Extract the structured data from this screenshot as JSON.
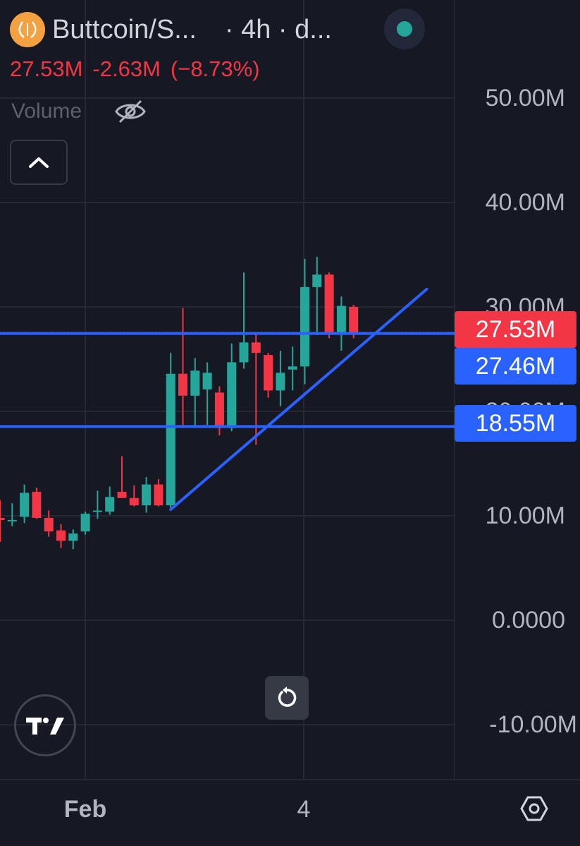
{
  "header": {
    "symbol": "Buttcoin/S...",
    "interval": "· 4h · d...",
    "last_price": "27.53M",
    "change": "-2.63M",
    "change_pct": "(−8.73%)",
    "volume_label": "Volume"
  },
  "colors": {
    "background": "#161823",
    "up": "#26a69a",
    "down": "#f23645",
    "drawing": "#2962ff",
    "grid": "#2a2e39"
  },
  "icons": [
    "coin-logo-icon",
    "eye-off-icon",
    "chevron-up-icon",
    "reset-icon",
    "tradingview-logo-icon",
    "settings-icon"
  ],
  "chart_data": {
    "type": "candlestick",
    "interval": "4h",
    "y_ticks": [
      "50.00M",
      "40.00M",
      "30.00M",
      "20.00M",
      "10.00M",
      "0.0000",
      "-10.00M"
    ],
    "y_tick_values": [
      50000000,
      40000000,
      30000000,
      20000000,
      10000000,
      0,
      -10000000
    ],
    "x_ticks": [
      "Feb",
      "4"
    ],
    "ylim": [
      -15000000,
      50000000
    ],
    "grid": true,
    "candles": [
      {
        "o": 9.8,
        "h": 11.5,
        "l": 7.5,
        "c": 9.6
      },
      {
        "o": 9.5,
        "h": 11.2,
        "l": 9.0,
        "c": 9.6
      },
      {
        "o": 9.9,
        "h": 13.0,
        "l": 9.3,
        "c": 12.2
      },
      {
        "o": 12.3,
        "h": 12.7,
        "l": 9.7,
        "c": 9.8
      },
      {
        "o": 9.8,
        "h": 10.5,
        "l": 8.0,
        "c": 8.5
      },
      {
        "o": 8.6,
        "h": 9.2,
        "l": 6.9,
        "c": 7.6
      },
      {
        "o": 7.6,
        "h": 8.7,
        "l": 6.8,
        "c": 8.3
      },
      {
        "o": 8.5,
        "h": 10.4,
        "l": 8.2,
        "c": 10.2
      },
      {
        "o": 10.4,
        "h": 12.4,
        "l": 9.7,
        "c": 10.5
      },
      {
        "o": 10.4,
        "h": 12.8,
        "l": 10.1,
        "c": 11.8
      },
      {
        "o": 12.3,
        "h": 15.7,
        "l": 11.8,
        "c": 11.7
      },
      {
        "o": 11.7,
        "h": 12.9,
        "l": 10.9,
        "c": 11.0
      },
      {
        "o": 11.0,
        "h": 13.7,
        "l": 10.3,
        "c": 13.0
      },
      {
        "o": 13.0,
        "h": 13.5,
        "l": 10.9,
        "c": 11.0
      },
      {
        "o": 11.0,
        "h": 25.6,
        "l": 10.5,
        "c": 23.6
      },
      {
        "o": 23.6,
        "h": 29.9,
        "l": 18.4,
        "c": 21.5
      },
      {
        "o": 21.5,
        "h": 25.1,
        "l": 18.5,
        "c": 23.9
      },
      {
        "o": 22.1,
        "h": 24.7,
        "l": 18.7,
        "c": 23.7
      },
      {
        "o": 21.8,
        "h": 22.4,
        "l": 17.7,
        "c": 18.4
      },
      {
        "o": 18.4,
        "h": 26.5,
        "l": 18.1,
        "c": 24.7
      },
      {
        "o": 24.7,
        "h": 33.3,
        "l": 24.1,
        "c": 26.6
      },
      {
        "o": 26.6,
        "h": 27.6,
        "l": 16.8,
        "c": 25.6
      },
      {
        "o": 25.4,
        "h": 25.6,
        "l": 21.3,
        "c": 22.0
      },
      {
        "o": 22.0,
        "h": 25.8,
        "l": 20.5,
        "c": 23.7
      },
      {
        "o": 24.0,
        "h": 26.2,
        "l": 22.0,
        "c": 24.3
      },
      {
        "o": 24.3,
        "h": 34.6,
        "l": 22.6,
        "c": 31.9
      },
      {
        "o": 31.9,
        "h": 34.8,
        "l": 27.3,
        "c": 33.1
      },
      {
        "o": 33.1,
        "h": 33.3,
        "l": 27.0,
        "c": 27.5
      },
      {
        "o": 27.6,
        "h": 31.0,
        "l": 25.8,
        "c": 30.1
      },
      {
        "o": 30.0,
        "h": 30.2,
        "l": 27.0,
        "c": 27.5
      }
    ],
    "price_lines": [
      {
        "label": "27.53M",
        "value": 27530000,
        "color": "#f23645",
        "dotted": true
      },
      {
        "label": "27.46M",
        "value": 27460000,
        "color": "#2962ff",
        "dotted": false
      },
      {
        "label": "18.55M",
        "value": 18550000,
        "color": "#2962ff",
        "dotted": false
      }
    ],
    "trendline": {
      "from": {
        "candle": 14,
        "value": 10.6
      },
      "to": {
        "candle": 35,
        "value": 31.7
      }
    }
  }
}
